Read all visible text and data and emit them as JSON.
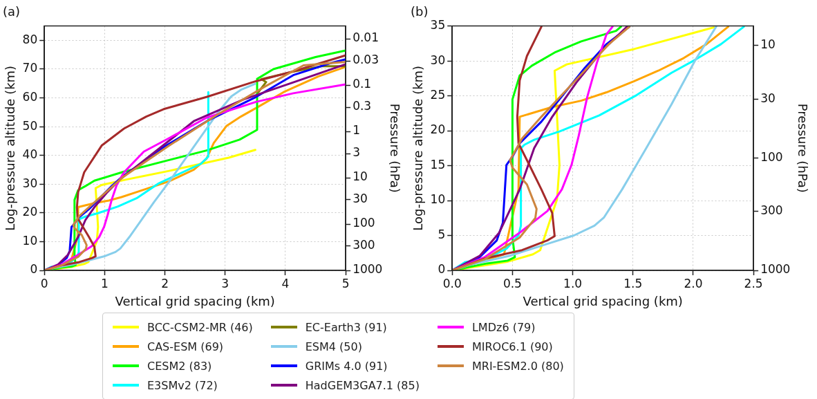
{
  "chart_data": [
    {
      "type": "line",
      "title": "(a)",
      "xlabel": "Vertical grid spacing (km)",
      "ylabel": "Log-pressure altitude (km)",
      "y2label": "Pressure (hPa)",
      "xlim": [
        0,
        5
      ],
      "xticks": [
        0,
        1,
        2,
        3,
        4,
        5
      ],
      "ylim": [
        0,
        85
      ],
      "yticks": [
        0,
        10,
        20,
        30,
        40,
        50,
        60,
        70,
        80
      ],
      "y2lim": [
        1000,
        0.0053
      ],
      "y2ticks": [
        1000,
        300,
        100,
        30,
        10,
        3,
        1,
        0.3,
        0.1,
        0.03,
        0.01
      ],
      "log": "y2",
      "grid": true,
      "legend": "bottom",
      "series": [
        {
          "name": "BCC-CSM2-MR (46)",
          "color": "#ffff00",
          "x": [
            0,
            0.45,
            0.67,
            0.73,
            0.87,
            0.89,
            0.87,
            0.85,
            0.95,
            1.36,
            2.07,
            3.06,
            3.5
          ],
          "values": [
            0,
            1.2,
            2.3,
            2.9,
            10.2,
            15.1,
            22,
            28.6,
            29.7,
            31.6,
            34.6,
            39.2,
            41.9
          ]
        },
        {
          "name": "CAS-ESM (69)",
          "color": "#ffa500",
          "x": [
            0,
            0.43,
            0.55,
            0.56,
            0.83,
            1.07,
            1.28,
            1.51,
            2.07,
            2.48,
            2.69,
            2.81,
            3.02,
            3.26,
            3.55,
            3.97,
            4.55,
            5
          ],
          "values": [
            0,
            2.3,
            11.6,
            22,
            23.4,
            24.3,
            25.5,
            27.1,
            31,
            35,
            38.8,
            44.3,
            50.2,
            53.5,
            56.9,
            62,
            67.5,
            70.8
          ]
        },
        {
          "name": "CESM2 (83)",
          "color": "#00ff00",
          "x": [
            0,
            0.29,
            0.46,
            0.52,
            0.5,
            0.5,
            0.56,
            0.68,
            0.83,
            1.3,
            2.07,
            2.69,
            3.24,
            3.53,
            3.53,
            3.8,
            4.5,
            5
          ],
          "values": [
            0,
            1,
            1.4,
            1.9,
            4.7,
            24.5,
            27.9,
            29.3,
            31.2,
            34.2,
            38.4,
            41.7,
            45.5,
            48.9,
            66.6,
            70,
            74.2,
            76.5
          ]
        },
        {
          "name": "E3SMv2 (72)",
          "color": "#00ffff",
          "x": [
            0,
            0.11,
            0.27,
            0.45,
            0.55,
            0.57,
            0.57,
            0.6,
            0.68,
            0.89,
            1.22,
            1.53,
            1.9,
            2.6,
            2.72,
            2.72
          ],
          "values": [
            0,
            1.2,
            1.6,
            3.1,
            5,
            6.4,
            17.5,
            18,
            18.7,
            19.9,
            22.2,
            25.1,
            30.3,
            37.1,
            39.6,
            62
          ]
        },
        {
          "name": "EC-Earth3 (91)",
          "color": "#808000",
          "x": [
            3.55,
            3.68,
            3.6,
            4.1,
            4.6,
            5
          ],
          "values": [
            62,
            65.5,
            66.5,
            69,
            71,
            71
          ]
        },
        {
          "name": "ESM4 (50)",
          "color": "#87ceeb",
          "x": [
            0,
            0.17,
            0.48,
            0.79,
            1.01,
            1.18,
            1.26,
            1.41,
            1.61,
            1.82,
            2.07,
            2.48,
            2.89,
            3.1,
            3.26,
            3.5
          ],
          "values": [
            0,
            0.9,
            2.1,
            3.8,
            5,
            6.4,
            7.6,
            11.6,
            17.5,
            23.8,
            30.8,
            43,
            55.2,
            60.5,
            62.8,
            64.9
          ]
        },
        {
          "name": "GRIMs 4.0 (91)",
          "color": "#0000ff",
          "x": [
            0,
            0.21,
            0.37,
            0.42,
            0.45,
            0.5,
            0.56,
            0.74,
            0.89,
            1.1,
            1.28,
            2.02,
            2.73,
            3.51,
            4.13,
            4.75,
            5
          ],
          "values": [
            0,
            1.6,
            4.3,
            6.8,
            15.1,
            16.3,
            18.2,
            21.3,
            24.5,
            29,
            32.4,
            43.4,
            52.3,
            60.3,
            67.9,
            72.1,
            73.4
          ]
        },
        {
          "name": "HadGEM3GA7.1 (85)",
          "color": "#800080",
          "x": [
            0,
            0.23,
            0.39,
            0.56,
            0.68,
            0.83,
            1.03,
            1.24,
            2.48,
            3.31,
            4.13,
            5
          ],
          "values": [
            0,
            2.1,
            5.4,
            11.6,
            17.5,
            22,
            26.9,
            31.4,
            51.9,
            59.5,
            65.4,
            71.7
          ]
        },
        {
          "name": "LMDz6 (79)",
          "color": "#ff00ff",
          "x": [
            0,
            0.27,
            0.56,
            0.79,
            0.91,
            0.99,
            1.05,
            1.12,
            1.2,
            1.32,
            1.65,
            2.07,
            2.69,
            3.51,
            4.13,
            5
          ],
          "values": [
            0,
            1.9,
            5.4,
            8.5,
            11.6,
            15.1,
            19.3,
            24.8,
            29.7,
            34.1,
            41.3,
            46,
            53.1,
            58.6,
            61.6,
            64.7
          ]
        },
        {
          "name": "MIROC6.1 (90)",
          "color": "#a52a2a",
          "x": [
            0,
            0.27,
            0.58,
            0.79,
            0.85,
            0.83,
            0.74,
            0.64,
            0.55,
            0.54,
            0.56,
            0.66,
            0.95,
            1.32,
            1.69,
            1.98,
            2.69,
            3.51,
            4.13,
            5
          ],
          "values": [
            0,
            1.7,
            2.9,
            4.3,
            4.9,
            8.2,
            11.6,
            15.1,
            18.2,
            22,
            27.2,
            34.1,
            43.4,
            49.3,
            53.5,
            56.1,
            60.3,
            65.8,
            69.2,
            74.8
          ]
        },
        {
          "name": "MRI-ESM2.0 (80)",
          "color": "#cd853f",
          "x": [
            0,
            0.27,
            0.56,
            0.69,
            0.7,
            0.62,
            0.5,
            0.48,
            0.58,
            0.74,
            0.93,
            1.12,
            1.3,
            2.07,
            2.89,
            3.64,
            4.3,
            5
          ],
          "values": [
            0,
            1.6,
            4.7,
            7.5,
            8.8,
            12.3,
            14.7,
            15.8,
            18.9,
            22,
            25.5,
            29,
            32.4,
            43.4,
            54.4,
            63.7,
            71.3,
            72.5
          ]
        }
      ]
    },
    {
      "type": "line",
      "title": "(b)",
      "xlabel": "Vertical grid spacing (km)",
      "ylabel": "Log-pressure altitude (km)",
      "y2label": "Pressure (hPa)",
      "xlim": [
        0,
        2.5
      ],
      "xticks": [
        {
          "value": 0,
          "label": "0.0"
        },
        {
          "value": 0.5,
          "label": "0.5"
        },
        {
          "value": 1,
          "label": "1.0"
        },
        {
          "value": 1.5,
          "label": "1.5"
        },
        {
          "value": 2,
          "label": "2.0"
        },
        {
          "value": 2.5,
          "label": "2.5"
        }
      ],
      "ylim": [
        0,
        35
      ],
      "yticks": [
        0,
        5,
        10,
        15,
        20,
        25,
        30,
        35
      ],
      "y2lim": [
        1000,
        6.74
      ],
      "y2ticks": [
        1000,
        300,
        100,
        30,
        10
      ],
      "log": "y2",
      "grid": true,
      "legend": "bottom",
      "series": [
        {
          "name": "BCC-CSM2-MR (46)",
          "color": "#ffff00",
          "x": [
            0,
            0.45,
            0.67,
            0.73,
            0.87,
            0.89,
            0.87,
            0.85,
            0.95,
            1.51,
            2.17
          ],
          "values": [
            0,
            1.2,
            2.3,
            2.9,
            10.2,
            15.1,
            22,
            28.6,
            29.5,
            31.7,
            34.8
          ]
        },
        {
          "name": "CAS-ESM (69)",
          "color": "#ffa500",
          "x": [
            0,
            0.43,
            0.55,
            0.56,
            0.83,
            1.07,
            1.28,
            1.51,
            1.71,
            1.92,
            2.11,
            2.29
          ],
          "values": [
            0,
            2.3,
            11.6,
            22,
            23.4,
            24.3,
            25.5,
            27.1,
            28.6,
            30.4,
            32.4,
            34.9
          ]
        },
        {
          "name": "CESM2 (83)",
          "color": "#00ff00",
          "x": [
            0,
            0.29,
            0.46,
            0.52,
            0.5,
            0.5,
            0.56,
            0.66,
            0.85,
            1.07,
            1.36,
            1.4
          ],
          "values": [
            0,
            1,
            1.4,
            1.9,
            4.7,
            24.5,
            27.9,
            29.3,
            31.2,
            32.8,
            34.3,
            34.9
          ]
        },
        {
          "name": "E3SMv2 (72)",
          "color": "#00ffff",
          "x": [
            0,
            0.11,
            0.27,
            0.45,
            0.55,
            0.57,
            0.57,
            0.6,
            0.68,
            0.89,
            1.22,
            1.53,
            1.82,
            2.02,
            2.23,
            2.42
          ],
          "values": [
            0,
            1.2,
            1.6,
            3.1,
            5,
            6.4,
            17.5,
            18,
            18.7,
            19.9,
            22.2,
            25.1,
            28.3,
            30.2,
            32.4,
            34.9
          ]
        },
        {
          "name": "ESM4 (50)",
          "color": "#87ceeb",
          "x": [
            0,
            0.17,
            0.48,
            0.79,
            1.01,
            1.18,
            1.26,
            1.41,
            1.61,
            1.82,
            2.02,
            2.19
          ],
          "values": [
            0,
            0.9,
            2.1,
            3.8,
            5,
            6.4,
            7.6,
            11.6,
            17.5,
            23.8,
            30.2,
            34.9
          ]
        },
        {
          "name": "GRIMs 4.0 (91)",
          "color": "#0000ff",
          "x": [
            0,
            0.21,
            0.37,
            0.42,
            0.45,
            0.5,
            0.56,
            0.74,
            0.89,
            1.1,
            1.28,
            1.47
          ],
          "values": [
            0,
            1.6,
            4.3,
            6.8,
            15.1,
            16.3,
            18.2,
            21.3,
            24.5,
            29,
            32.4,
            34.9
          ]
        },
        {
          "name": "HadGEM3GA7.1 (85)",
          "color": "#800080",
          "x": [
            0,
            0.23,
            0.39,
            0.56,
            0.68,
            0.83,
            1.03,
            1.24,
            1.45
          ],
          "values": [
            0,
            2.1,
            5.4,
            11.6,
            17.5,
            22,
            26.9,
            31.4,
            34.9
          ]
        },
        {
          "name": "LMDz6 (79)",
          "color": "#ff00ff",
          "x": [
            0,
            0.27,
            0.56,
            0.79,
            0.91,
            0.99,
            1.05,
            1.12,
            1.2,
            1.28,
            1.33
          ],
          "values": [
            0,
            1.9,
            5.4,
            8.5,
            11.6,
            15.1,
            19.3,
            24.8,
            29.7,
            33.8,
            34.9
          ]
        },
        {
          "name": "MIROC6.1 (90)",
          "color": "#a52a2a",
          "x": [
            0,
            0.27,
            0.58,
            0.79,
            0.85,
            0.83,
            0.74,
            0.64,
            0.55,
            0.54,
            0.56,
            0.62,
            0.74
          ],
          "values": [
            0,
            1.7,
            2.9,
            4.3,
            4.9,
            8.2,
            11.6,
            15.1,
            18.2,
            22,
            27.2,
            30.7,
            34.9
          ]
        },
        {
          "name": "MRI-ESM2.0 (80)",
          "color": "#cd853f",
          "x": [
            0,
            0.27,
            0.56,
            0.69,
            0.7,
            0.62,
            0.5,
            0.48,
            0.58,
            0.74,
            0.93,
            1.12,
            1.3,
            1.47
          ],
          "values": [
            0,
            1.6,
            4.7,
            7.5,
            8.8,
            12.3,
            14.7,
            15.8,
            18.9,
            22,
            25.5,
            29,
            32.4,
            34.9
          ]
        }
      ]
    }
  ]
}
